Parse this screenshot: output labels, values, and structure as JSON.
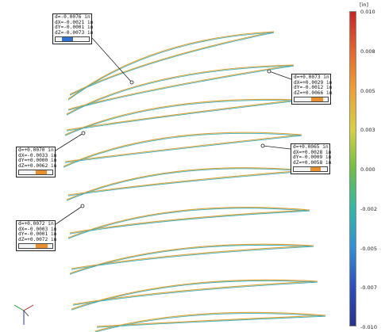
{
  "unit": "[in]",
  "scale": {
    "ticks": [
      "0.010",
      "0.008",
      "0.005",
      "0.003",
      "0.000",
      "-0.002",
      "-0.005",
      "-0.007",
      "-0.010"
    ],
    "colors": [
      "#cc2222",
      "#e8642a",
      "#f0a030",
      "#d8d040",
      "#6cc040",
      "#30b8a8",
      "#3090d8",
      "#2a50c0",
      "#2a3090"
    ]
  },
  "callouts": [
    {
      "lines": [
        "d=-0.0076 in",
        "dX=-0.0021 in",
        "dY=-0.0001 in",
        "dZ=-0.0073 in"
      ],
      "sign": "neg",
      "level": 0.3
    },
    {
      "lines": [
        "d=+0.0073 in",
        "dX=+0.0029 in",
        "dY=-0.0012 in",
        "dZ=+0.0066 in"
      ],
      "sign": "pos",
      "level": 0.35
    },
    {
      "lines": [
        "d=+0.0070 in",
        "dX=-0.0033 in",
        "dY=+0.0000 in",
        "dZ=+0.0062 in"
      ],
      "sign": "pos",
      "level": 0.33
    },
    {
      "lines": [
        "d=+0.0065 in",
        "dX=+0.0028 in",
        "dY=-0.0009 in",
        "dZ=+0.0058 in"
      ],
      "sign": "pos",
      "level": 0.32
    },
    {
      "lines": [
        "d=+0.0072 in",
        "dX=-0.0003 in",
        "dY=-0.0001 in",
        "dZ=+0.0072 in"
      ],
      "sign": "pos",
      "level": 0.35
    }
  ]
}
